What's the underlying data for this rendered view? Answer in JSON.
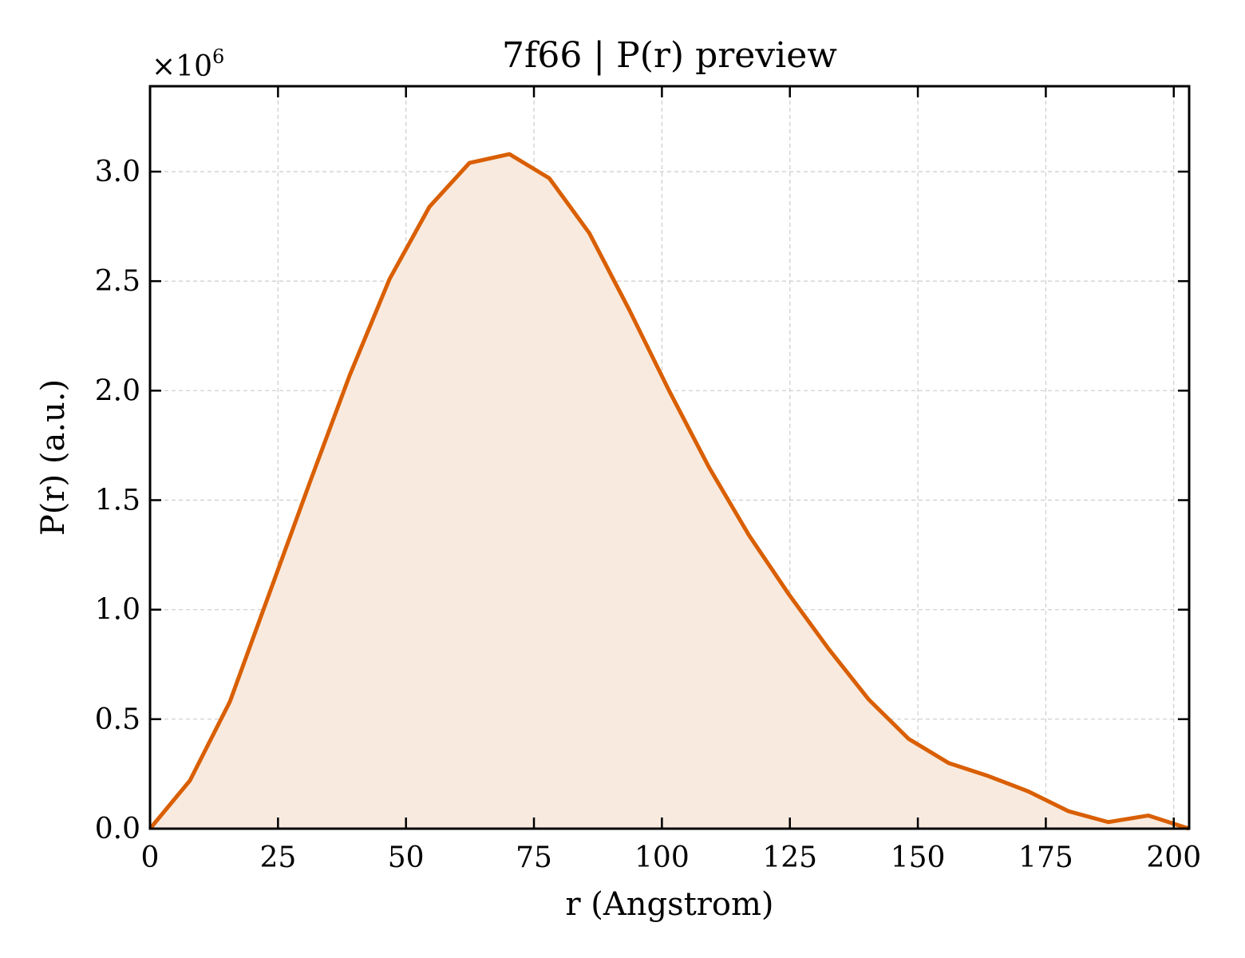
{
  "chart_data": {
    "type": "area",
    "title": "7f66 | P(r) preview",
    "xlabel": "r (Angstrom)",
    "ylabel": "P(r) (a.u.)",
    "y_multiplier": "×10",
    "y_multiplier_exp": "6",
    "xlim": [
      0,
      203
    ],
    "ylim": [
      0,
      3.39
    ],
    "xticks": [
      0,
      25,
      50,
      75,
      100,
      125,
      150,
      175,
      200
    ],
    "yticks": [
      0.0,
      0.5,
      1.0,
      1.5,
      2.0,
      2.5,
      3.0
    ],
    "grid": true,
    "series": [
      {
        "color": "#d95f02",
        "fill": "#f9eadf",
        "x": [
          0,
          7.8,
          15.6,
          23.4,
          31.2,
          39.0,
          46.8,
          54.6,
          62.4,
          70.2,
          78.0,
          85.8,
          93.6,
          101.4,
          109.2,
          117.0,
          124.8,
          132.6,
          140.4,
          148.2,
          156.0,
          163.8,
          171.6,
          179.4,
          187.2,
          195.0,
          203.0
        ],
        "y": [
          0.0,
          0.22,
          0.58,
          1.08,
          1.58,
          2.07,
          2.51,
          2.84,
          3.04,
          3.08,
          2.97,
          2.72,
          2.37,
          2.0,
          1.65,
          1.34,
          1.07,
          0.82,
          0.59,
          0.41,
          0.3,
          0.24,
          0.17,
          0.08,
          0.03,
          0.06,
          0.0
        ]
      }
    ]
  }
}
